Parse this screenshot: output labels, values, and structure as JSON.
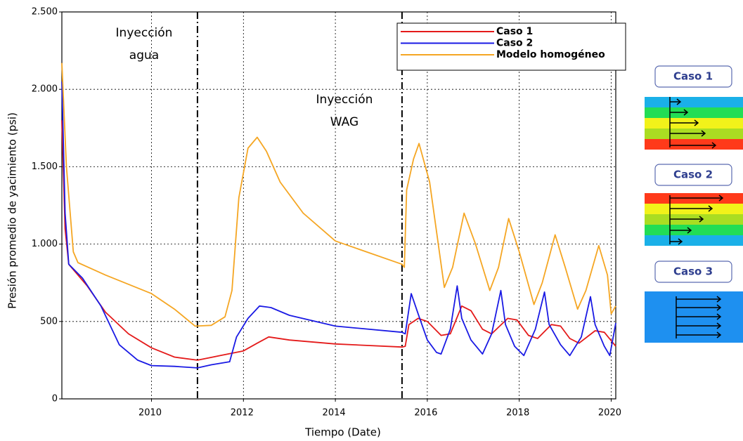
{
  "chart_data": {
    "type": "line",
    "ylabel": "Presión promedio de yacimiento (psi)",
    "xlabel": "Tiempo (Date)",
    "xlim": [
      2008.05,
      2020.1
    ],
    "xticks": [
      2010,
      2012,
      2014,
      2016,
      2018,
      2020
    ],
    "ylim": [
      0,
      2500
    ],
    "yticks": [
      0,
      500,
      {
        "value": 1000,
        "label": "1.000"
      },
      {
        "value": 1500,
        "label": "1.500"
      },
      {
        "value": 2000,
        "label": "2.000"
      },
      {
        "value": 2500,
        "label": "2.500"
      }
    ],
    "grid": true,
    "legend": "upper right",
    "vlines": [
      2011.0,
      2015.45
    ],
    "annotations": [
      [
        "Inyección",
        "agua"
      ],
      [
        "Inyección",
        "WAG"
      ]
    ],
    "series": [
      {
        "name": "Caso 1",
        "color": "#e41a1a",
        "x": [
          2008.05,
          2008.12,
          2008.2,
          2008.6,
          2009,
          2009.5,
          2010,
          2010.5,
          2011,
          2011.5,
          2012,
          2012.3,
          2012.55,
          2013,
          2014,
          2015.45,
          2015.52,
          2015.6,
          2015.8,
          2016,
          2016.3,
          2016.5,
          2016.75,
          2016.95,
          2017.2,
          2017.4,
          2017.75,
          2017.95,
          2018.2,
          2018.4,
          2018.7,
          2018.9,
          2019.1,
          2019.3,
          2019.65,
          2019.85,
          2020.1
        ],
        "values": [
          1800,
          1100,
          870,
          730,
          560,
          420,
          330,
          270,
          250,
          280,
          310,
          360,
          400,
          380,
          355,
          335,
          340,
          480,
          520,
          500,
          410,
          420,
          600,
          570,
          450,
          420,
          520,
          510,
          410,
          390,
          480,
          470,
          390,
          360,
          440,
          430,
          340
        ]
      },
      {
        "name": "Caso 2",
        "color": "#1a1ae4",
        "x": [
          2008.05,
          2008.12,
          2008.2,
          2008.5,
          2008.9,
          2009.3,
          2009.7,
          2010,
          2010.5,
          2011,
          2011.3,
          2011.7,
          2011.85,
          2012.1,
          2012.35,
          2012.6,
          2013,
          2014,
          2015.45,
          2015.52,
          2015.65,
          2015.8,
          2016,
          2016.2,
          2016.3,
          2016.5,
          2016.65,
          2016.75,
          2016.95,
          2017.2,
          2017.4,
          2017.6,
          2017.7,
          2017.9,
          2018.1,
          2018.35,
          2018.55,
          2018.65,
          2018.9,
          2019.1,
          2019.35,
          2019.55,
          2019.65,
          2019.85,
          2019.97,
          2020.1
        ],
        "values": [
          2050,
          1200,
          870,
          780,
          600,
          350,
          250,
          215,
          210,
          200,
          220,
          240,
          400,
          520,
          600,
          590,
          540,
          470,
          430,
          420,
          680,
          550,
          380,
          300,
          290,
          450,
          730,
          520,
          380,
          290,
          420,
          700,
          480,
          340,
          280,
          450,
          690,
          480,
          350,
          280,
          400,
          660,
          480,
          340,
          280,
          490
        ]
      },
      {
        "name": "Modelo homogéneo",
        "color": "#f5a623",
        "x": [
          2008.05,
          2008.15,
          2008.3,
          2008.4,
          2009,
          2010,
          2010.5,
          2010.95,
          2011.3,
          2011.6,
          2011.75,
          2011.9,
          2012.1,
          2012.3,
          2012.5,
          2012.8,
          2013.3,
          2014,
          2015.45,
          2015.5,
          2015.55,
          2015.7,
          2015.82,
          2016.05,
          2016.37,
          2016.55,
          2016.8,
          2017.05,
          2017.36,
          2017.55,
          2017.77,
          2018.0,
          2018.32,
          2018.5,
          2018.78,
          2019.0,
          2019.27,
          2019.45,
          2019.73,
          2019.92,
          2020.0,
          2020.1
        ],
        "values": [
          2170,
          1500,
          950,
          880,
          800,
          680,
          580,
          470,
          475,
          530,
          700,
          1300,
          1620,
          1690,
          1600,
          1400,
          1200,
          1020,
          870,
          850,
          1350,
          1550,
          1650,
          1400,
          720,
          850,
          1200,
          1000,
          700,
          850,
          1165,
          950,
          610,
          750,
          1060,
          850,
          580,
          700,
          990,
          800,
          550,
          600
        ]
      }
    ]
  },
  "panels": [
    "Caso 1",
    "Caso 2",
    "Caso 3"
  ]
}
